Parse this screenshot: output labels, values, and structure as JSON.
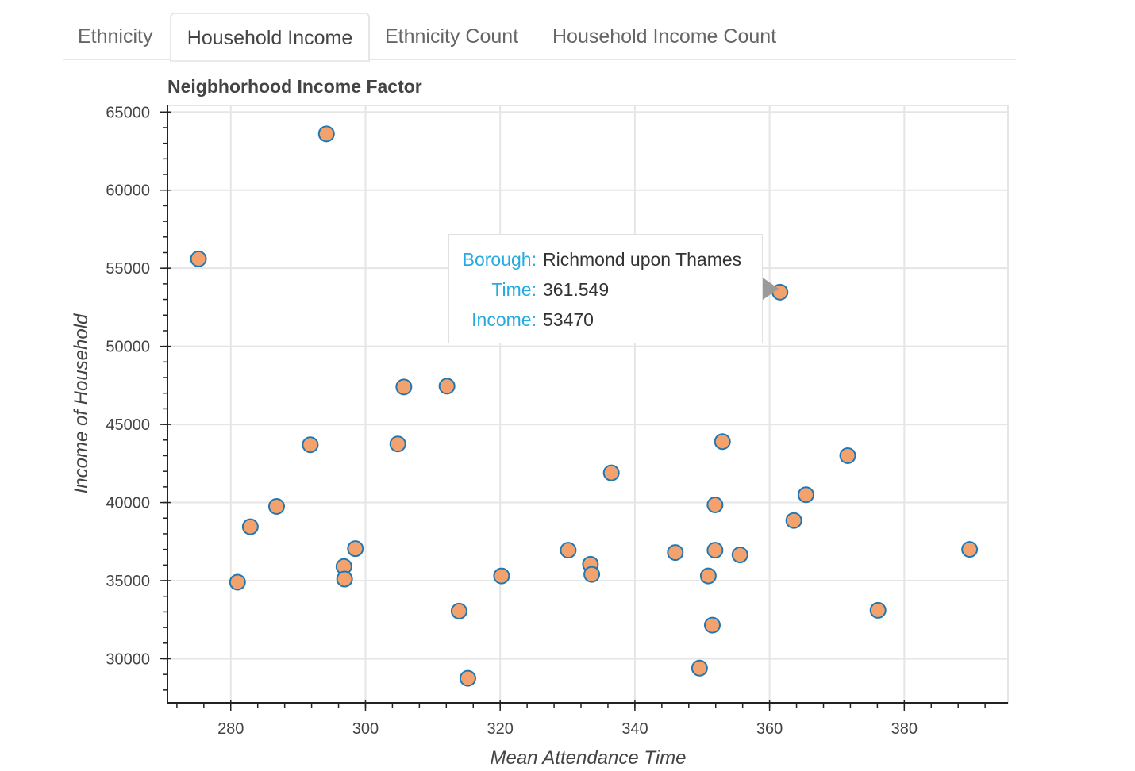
{
  "tabs": [
    {
      "label": "Ethnicity",
      "active": false
    },
    {
      "label": "Household Income",
      "active": true
    },
    {
      "label": "Ethnicity Count",
      "active": false
    },
    {
      "label": "Household Income Count",
      "active": false
    }
  ],
  "tooltip": {
    "rows": [
      {
        "key": "Borough:",
        "value": "Richmond upon Thames"
      },
      {
        "key": "Time:",
        "value": "361.549"
      },
      {
        "key": "Income:",
        "value": "53470"
      }
    ]
  },
  "colors": {
    "marker_fill": "#f4a26d",
    "marker_stroke": "#1f77b4",
    "grid": "#e5e5e5",
    "tooltip_key": "#26aae1"
  },
  "chart_data": {
    "type": "scatter",
    "title": "Neigbhorhood Income Factor",
    "xlabel": "Mean Attendance Time",
    "ylabel": "Income of Household",
    "xlim": [
      270.6,
      395.4
    ],
    "ylim": [
      27180,
      65420
    ],
    "xticks": [
      280,
      300,
      320,
      340,
      360,
      380
    ],
    "yticks": [
      30000,
      35000,
      40000,
      45000,
      50000,
      55000,
      60000,
      65000
    ],
    "grid": true,
    "points": [
      {
        "x": 275.2,
        "y": 55600
      },
      {
        "x": 281.0,
        "y": 34900
      },
      {
        "x": 282.9,
        "y": 38450
      },
      {
        "x": 286.8,
        "y": 39750
      },
      {
        "x": 291.8,
        "y": 43700
      },
      {
        "x": 294.2,
        "y": 63600
      },
      {
        "x": 296.8,
        "y": 35900
      },
      {
        "x": 296.9,
        "y": 35100
      },
      {
        "x": 298.5,
        "y": 37050
      },
      {
        "x": 304.8,
        "y": 43750
      },
      {
        "x": 305.7,
        "y": 47400
      },
      {
        "x": 312.1,
        "y": 47450
      },
      {
        "x": 313.9,
        "y": 33050
      },
      {
        "x": 315.2,
        "y": 28750
      },
      {
        "x": 320.2,
        "y": 35300
      },
      {
        "x": 330.1,
        "y": 36950
      },
      {
        "x": 333.4,
        "y": 36050
      },
      {
        "x": 333.6,
        "y": 35400
      },
      {
        "x": 336.5,
        "y": 41900
      },
      {
        "x": 346.0,
        "y": 36800
      },
      {
        "x": 349.6,
        "y": 29400
      },
      {
        "x": 350.9,
        "y": 35300
      },
      {
        "x": 351.5,
        "y": 32150
      },
      {
        "x": 351.9,
        "y": 39850
      },
      {
        "x": 351.9,
        "y": 36950
      },
      {
        "x": 353.0,
        "y": 43900
      },
      {
        "x": 355.6,
        "y": 36650
      },
      {
        "x": 361.549,
        "y": 53470
      },
      {
        "x": 363.6,
        "y": 38850
      },
      {
        "x": 365.4,
        "y": 40500
      },
      {
        "x": 371.6,
        "y": 43000
      },
      {
        "x": 376.1,
        "y": 33100
      },
      {
        "x": 389.7,
        "y": 37000
      }
    ]
  }
}
